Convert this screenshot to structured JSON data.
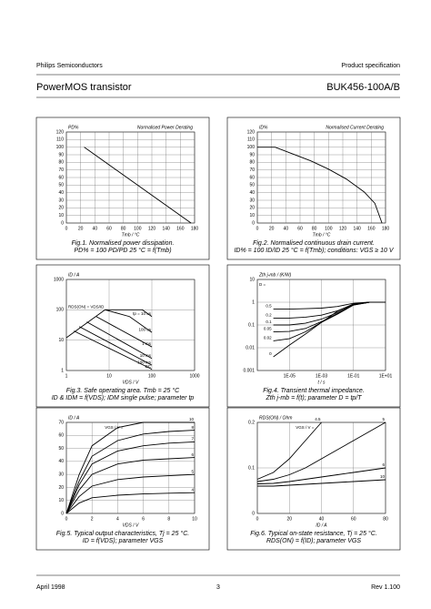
{
  "header": {
    "company": "Philips Semiconductors",
    "doc_type": "Product specification",
    "title": "PowerMOS transistor",
    "part": "BUK456-100A/B"
  },
  "footer": {
    "date": "April 1998",
    "page": "3",
    "revision": "Rev 1.100"
  },
  "chart_data": [
    {
      "type": "line",
      "title": "Normalised Power Derating",
      "ylabel": "PD%",
      "xlabel": "Tmb / °C",
      "caption": [
        "Fig.1.   Normalised power dissipation.",
        "PD% = 100 PD/PD 25 °C = f(Tmb)"
      ],
      "xlim": [
        0,
        180
      ],
      "ylim": [
        0,
        120
      ],
      "xticks": [
        0,
        20,
        40,
        60,
        80,
        100,
        120,
        140,
        160,
        180
      ],
      "yticks": [
        0,
        10,
        20,
        30,
        40,
        50,
        60,
        70,
        80,
        90,
        100,
        110,
        120
      ],
      "grid": true,
      "x": [
        25,
        175
      ],
      "series": [
        {
          "color": "#000000",
          "values": [
            100,
            0
          ]
        }
      ]
    },
    {
      "type": "line",
      "title": "Normalised Current Derating",
      "ylabel": "ID%",
      "xlabel": "Tmb / °C",
      "caption": [
        "Fig.2.   Normalised continuous drain current.",
        "ID% = 100 ID/ID 25 °C = f(Tmb); conditions: VGS ≥ 10 V"
      ],
      "xlim": [
        0,
        180
      ],
      "ylim": [
        0,
        120
      ],
      "xticks": [
        0,
        20,
        40,
        60,
        80,
        100,
        120,
        140,
        160,
        180
      ],
      "yticks": [
        0,
        10,
        20,
        30,
        40,
        50,
        60,
        70,
        80,
        90,
        100,
        110,
        120
      ],
      "grid": true,
      "x": [
        0,
        25,
        50,
        75,
        100,
        125,
        150,
        165,
        175
      ],
      "series": [
        {
          "color": "#000000",
          "values": [
            100,
            100,
            91,
            82,
            71,
            58,
            41,
            26,
            0
          ]
        }
      ]
    },
    {
      "type": "line",
      "ylabel": "ID / A",
      "xlabel": "VDS / V",
      "xscale": "log",
      "yscale": "log",
      "caption": [
        "Fig.3.   Safe operating area. Tmb = 25 °C",
        "ID & IDM = f(VDS); IDM single pulse; parameter tp"
      ],
      "xlim": [
        1,
        1000
      ],
      "ylim": [
        1,
        1000
      ],
      "xticks": [
        1,
        10,
        100,
        1000
      ],
      "yticks": [
        1,
        10,
        100,
        1000
      ],
      "grid": true,
      "series": [
        {
          "name": "RDS(ON) = VDS/ID",
          "color": "#000000",
          "x": [
            1,
            8
          ],
          "values": [
            12,
            100
          ]
        },
        {
          "name": "tp = 10 us",
          "color": "#000000",
          "x": [
            8,
            60,
            100
          ],
          "values": [
            100,
            100,
            60
          ]
        },
        {
          "name": "100 us",
          "color": "#000000",
          "x": [
            8,
            30,
            100
          ],
          "values": [
            100,
            60,
            18
          ]
        },
        {
          "name": "1 ms",
          "color": "#000000",
          "x": [
            5,
            100
          ],
          "values": [
            60,
            6
          ]
        },
        {
          "name": "10 ms",
          "color": "#000000",
          "x": [
            3,
            100
          ],
          "values": [
            40,
            2.5
          ]
        },
        {
          "name": "100 ms",
          "color": "#000000",
          "x": [
            2,
            100
          ],
          "values": [
            28,
            1.5
          ]
        },
        {
          "name": "DC",
          "color": "#000000",
          "x": [
            1.5,
            100
          ],
          "values": [
            20,
            1.1
          ]
        }
      ]
    },
    {
      "type": "line",
      "ylabel": "Zth j-mb / (K/W)",
      "xlabel": "t / s",
      "xscale": "log",
      "yscale": "log",
      "annotation": "D =",
      "caption": [
        "Fig.4.   Transient thermal impedance.",
        "Zth j-mb = f(t); parameter D = tp/T"
      ],
      "xlim": [
        1e-07,
        10
      ],
      "ylim": [
        0.001,
        10
      ],
      "xticks": [
        {
          "value": 1e-05,
          "label": "1E-05"
        },
        {
          "value": 0.001,
          "label": "1E-03"
        },
        {
          "value": 0.1,
          "label": "1E-01"
        },
        {
          "value": 10,
          "label": "1E+01"
        }
      ],
      "yticks": [
        0.001,
        0.01,
        0.1,
        1,
        10
      ],
      "grid": true,
      "x": [
        1e-06,
        1e-05,
        0.0001,
        0.001,
        0.01,
        0.1,
        1,
        10
      ],
      "series": [
        {
          "name": "0.5",
          "color": "#000000",
          "values": [
            0.5,
            0.5,
            0.52,
            0.55,
            0.65,
            0.9,
            1,
            1
          ]
        },
        {
          "name": "0.2",
          "color": "#000000",
          "values": [
            0.2,
            0.2,
            0.22,
            0.27,
            0.42,
            0.8,
            1,
            1
          ]
        },
        {
          "name": "0.1",
          "color": "#000000",
          "values": [
            0.1,
            0.1,
            0.12,
            0.18,
            0.35,
            0.78,
            1,
            1
          ]
        },
        {
          "name": "0.05",
          "color": "#000000",
          "values": [
            0.05,
            0.052,
            0.07,
            0.14,
            0.32,
            0.76,
            1,
            1
          ]
        },
        {
          "name": "0.02",
          "color": "#000000",
          "values": [
            0.02,
            0.025,
            0.05,
            0.13,
            0.3,
            0.75,
            1,
            1
          ]
        },
        {
          "name": "0",
          "color": "#000000",
          "values": [
            0.004,
            0.013,
            0.04,
            0.13,
            0.4,
            0.85,
            1,
            1
          ]
        }
      ]
    },
    {
      "type": "line",
      "ylabel": "ID / A",
      "xlabel": "VDS / V",
      "annotation": "VGS / V =",
      "caption": [
        "Fig.5.   Typical output characteristics, Tj = 25 °C.",
        "ID = f(VDS); parameter VGS"
      ],
      "xlim": [
        0,
        10
      ],
      "ylim": [
        0,
        70
      ],
      "xticks": [
        0,
        2,
        4,
        6,
        8,
        10
      ],
      "yticks": [
        0,
        10,
        20,
        30,
        40,
        50,
        60,
        70
      ],
      "grid": true,
      "x": [
        0,
        1,
        2,
        4,
        6,
        8,
        10
      ],
      "series": [
        {
          "name": "10",
          "color": "#000000",
          "values": [
            0,
            30,
            52,
            66,
            70,
            70,
            70
          ]
        },
        {
          "name": "8",
          "color": "#000000",
          "values": [
            0,
            25,
            44,
            56,
            61,
            63,
            64
          ]
        },
        {
          "name": "7",
          "color": "#000000",
          "values": [
            0,
            22,
            38,
            48,
            52,
            54,
            55
          ]
        },
        {
          "name": "6",
          "color": "#000000",
          "values": [
            0,
            18,
            30,
            38,
            41,
            42,
            43
          ]
        },
        {
          "name": "5",
          "color": "#000000",
          "values": [
            0,
            13,
            21,
            26,
            28,
            29,
            30
          ]
        },
        {
          "name": "4",
          "color": "#000000",
          "values": [
            0,
            8,
            12,
            14,
            15,
            15.5,
            16
          ]
        }
      ]
    },
    {
      "type": "line",
      "ylabel": "RDS(ON) / Ohm",
      "xlabel": "ID / A",
      "annotation": "VGS / V =",
      "caption": [
        "Fig.6.   Typical on-state resistance, Tj = 25 °C.",
        "RDS(ON) = f(ID); parameter VGS"
      ],
      "xlim": [
        0,
        80
      ],
      "ylim": [
        0,
        0.2
      ],
      "xticks": [
        0,
        20,
        40,
        60,
        80
      ],
      "yticks": [
        0,
        0.1,
        0.2
      ],
      "grid": true,
      "x": [
        0,
        10,
        20,
        30,
        40,
        50,
        60,
        70,
        80
      ],
      "series": [
        {
          "name": "4.5",
          "color": "#000000",
          "values": [
            0.075,
            0.09,
            0.12,
            0.16,
            0.2,
            null,
            null,
            null,
            null
          ]
        },
        {
          "name": "5",
          "color": "#000000",
          "values": [
            0.07,
            0.075,
            0.085,
            0.1,
            0.12,
            0.14,
            0.16,
            0.18,
            0.2
          ]
        },
        {
          "name": "6",
          "color": "#000000",
          "values": [
            0.065,
            0.066,
            0.07,
            0.075,
            0.08,
            0.085,
            0.09,
            0.095,
            0.1
          ]
        },
        {
          "name": "10",
          "color": "#000000",
          "values": [
            0.06,
            0.06,
            0.062,
            0.064,
            0.066,
            0.068,
            0.07,
            0.072,
            0.074
          ]
        }
      ]
    }
  ]
}
